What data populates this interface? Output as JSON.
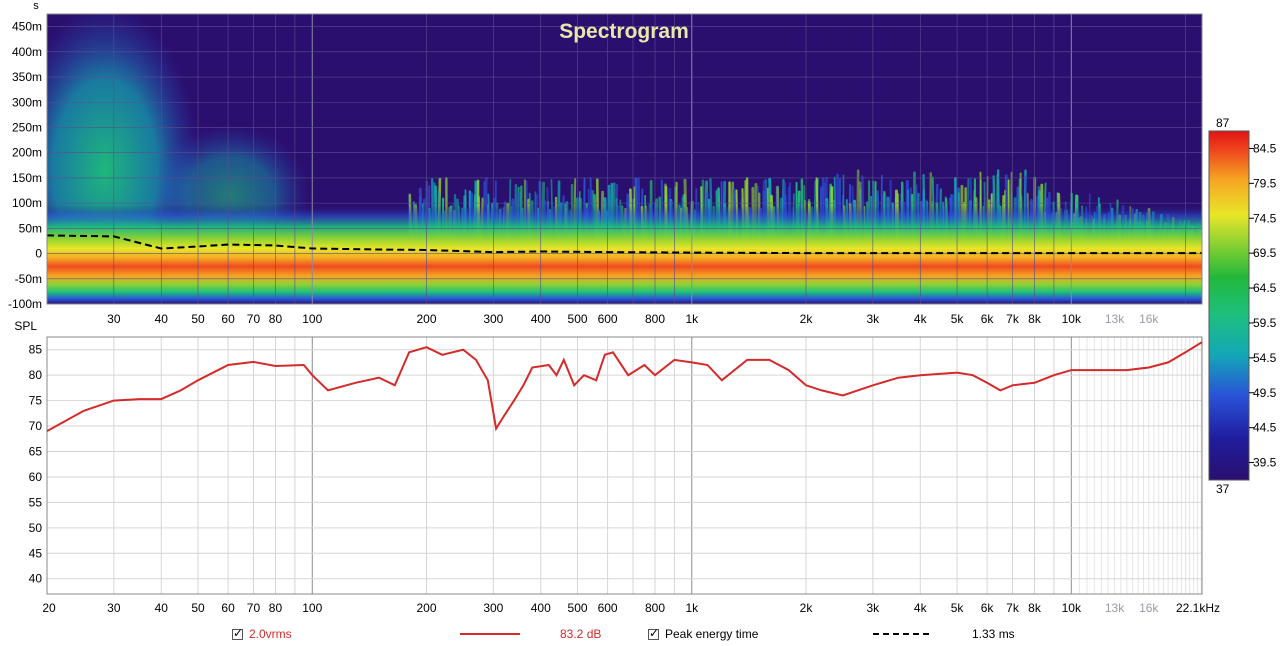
{
  "spectrogram": {
    "title": "Spectrogram",
    "y_unit_label": "s",
    "y_tick_labels": [
      "450m",
      "400m",
      "350m",
      "300m",
      "250m",
      "200m",
      "150m",
      "100m",
      "50m",
      "0",
      "-50m",
      "-100m"
    ],
    "y_ticks_ms": [
      450,
      400,
      350,
      300,
      250,
      200,
      150,
      100,
      50,
      0,
      -50,
      -100
    ],
    "ylim_ms": [
      -100,
      475
    ],
    "x_tick_labels": [
      "30",
      "40",
      "50",
      "60",
      "70",
      "80",
      "100",
      "200",
      "300",
      "400",
      "500",
      "600",
      "800",
      "1k",
      "2k",
      "3k",
      "4k",
      "5k",
      "6k",
      "7k",
      "8k",
      "10k",
      "13k",
      "16k"
    ],
    "x_tick_values_hz": [
      30,
      40,
      50,
      60,
      70,
      80,
      100,
      200,
      300,
      400,
      500,
      600,
      800,
      1000,
      2000,
      3000,
      4000,
      5000,
      6000,
      7000,
      8000,
      10000,
      13000,
      16000
    ],
    "muted_x_tick_labels": [
      "13k",
      "16k"
    ],
    "background_color": "#2a0f6e",
    "peak_energy_time_ms": [
      [
        20,
        36
      ],
      [
        30,
        34
      ],
      [
        40,
        10
      ],
      [
        50,
        14
      ],
      [
        60,
        18
      ],
      [
        70,
        17
      ],
      [
        80,
        16
      ],
      [
        100,
        10
      ],
      [
        150,
        8
      ],
      [
        200,
        7
      ],
      [
        300,
        3
      ],
      [
        400,
        4
      ],
      [
        600,
        3
      ],
      [
        1000,
        2
      ],
      [
        2000,
        1
      ],
      [
        5000,
        1
      ],
      [
        10000,
        1
      ],
      [
        22100,
        1
      ]
    ]
  },
  "colorbar": {
    "min_label": "37",
    "max_label": "87",
    "tick_labels": [
      "84.5",
      "79.5",
      "74.5",
      "69.5",
      "64.5",
      "59.5",
      "54.5",
      "49.5",
      "44.5",
      "39.5"
    ],
    "tick_values": [
      84.5,
      79.5,
      74.5,
      69.5,
      64.5,
      59.5,
      54.5,
      49.5,
      44.5,
      39.5
    ],
    "range": [
      37,
      87
    ]
  },
  "chart_data": {
    "type": "line",
    "xlabel": "",
    "ylabel": "SPL",
    "x_unit": "kHz",
    "xscale": "log",
    "xlim_hz": [
      20,
      22100
    ],
    "ylim": [
      37,
      87.5
    ],
    "y_tick_labels": [
      "85",
      "80",
      "75",
      "70",
      "65",
      "60",
      "55",
      "50",
      "45",
      "40"
    ],
    "y_ticks": [
      85,
      80,
      75,
      70,
      65,
      60,
      55,
      50,
      45,
      40
    ],
    "x_tick_labels": [
      "20",
      "30",
      "40",
      "50",
      "60",
      "70",
      "80",
      "100",
      "200",
      "300",
      "400",
      "500",
      "600",
      "800",
      "1k",
      "2k",
      "3k",
      "4k",
      "5k",
      "6k",
      "7k",
      "8k",
      "10k",
      "13k",
      "16k",
      "22.1kHz"
    ],
    "x_tick_values_hz": [
      20,
      30,
      40,
      50,
      60,
      70,
      80,
      100,
      200,
      300,
      400,
      500,
      600,
      800,
      1000,
      2000,
      3000,
      4000,
      5000,
      6000,
      7000,
      8000,
      10000,
      13000,
      16000,
      22100
    ],
    "muted_x_tick_labels": [
      "13k",
      "16k"
    ],
    "grid": true,
    "series": [
      {
        "color": "#d42a2a",
        "points": [
          [
            20,
            69
          ],
          [
            25,
            73
          ],
          [
            30,
            75
          ],
          [
            35,
            75.3
          ],
          [
            40,
            75.3
          ],
          [
            45,
            77
          ],
          [
            50,
            79
          ],
          [
            60,
            82
          ],
          [
            70,
            82.6
          ],
          [
            80,
            81.8
          ],
          [
            95,
            82
          ],
          [
            100,
            80
          ],
          [
            110,
            77
          ],
          [
            130,
            78.5
          ],
          [
            150,
            79.5
          ],
          [
            165,
            78
          ],
          [
            180,
            84.5
          ],
          [
            200,
            85.5
          ],
          [
            220,
            84
          ],
          [
            250,
            85
          ],
          [
            270,
            83
          ],
          [
            290,
            79
          ],
          [
            305,
            69.5
          ],
          [
            320,
            72
          ],
          [
            340,
            75
          ],
          [
            360,
            78
          ],
          [
            380,
            81.5
          ],
          [
            420,
            82
          ],
          [
            440,
            80
          ],
          [
            460,
            83
          ],
          [
            490,
            78
          ],
          [
            520,
            80
          ],
          [
            560,
            79
          ],
          [
            590,
            84
          ],
          [
            620,
            84.5
          ],
          [
            680,
            80
          ],
          [
            750,
            82
          ],
          [
            800,
            80
          ],
          [
            900,
            83
          ],
          [
            1000,
            82.5
          ],
          [
            1100,
            82
          ],
          [
            1200,
            79
          ],
          [
            1400,
            83
          ],
          [
            1600,
            83
          ],
          [
            1800,
            81
          ],
          [
            2000,
            78
          ],
          [
            2200,
            77
          ],
          [
            2500,
            76
          ],
          [
            3000,
            78
          ],
          [
            3500,
            79.5
          ],
          [
            4000,
            80
          ],
          [
            5000,
            80.5
          ],
          [
            5500,
            80
          ],
          [
            6000,
            78.5
          ],
          [
            6500,
            77
          ],
          [
            7000,
            78
          ],
          [
            8000,
            78.5
          ],
          [
            9000,
            80
          ],
          [
            10000,
            81
          ],
          [
            12000,
            81
          ],
          [
            14000,
            81
          ],
          [
            16000,
            81.5
          ],
          [
            18000,
            82.5
          ],
          [
            20000,
            84.5
          ],
          [
            22100,
            86.5
          ]
        ]
      }
    ]
  },
  "legend": {
    "level_label": "2.0vrms",
    "level_checked": true,
    "spl_value": "83.2 dB",
    "peak_label": "Peak energy time",
    "peak_checked": true,
    "peak_value": "1.33 ms"
  }
}
